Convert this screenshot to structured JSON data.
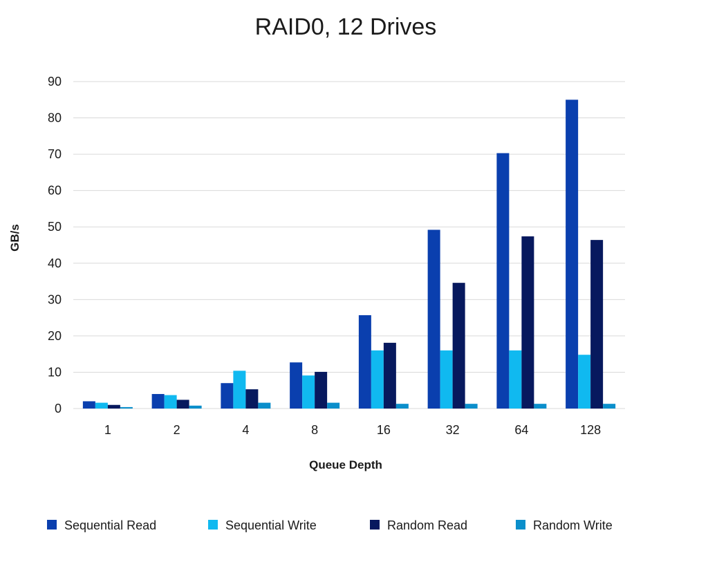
{
  "chart_data": {
    "type": "bar",
    "title": "RAID0, 12 Drives",
    "xlabel": "Queue Depth",
    "ylabel": "GB/s",
    "ylim": [
      0,
      90
    ],
    "yticks": [
      0,
      10,
      20,
      30,
      40,
      50,
      60,
      70,
      80,
      90
    ],
    "grid": true,
    "legend_position": "bottom",
    "categories": [
      "1",
      "2",
      "4",
      "8",
      "16",
      "32",
      "64",
      "128"
    ],
    "series": [
      {
        "name": "Sequential Read",
        "color": "#0a3fae",
        "values": [
          2.0,
          4.0,
          7.0,
          12.7,
          25.7,
          49.2,
          70.3,
          85.0
        ]
      },
      {
        "name": "Sequential Write",
        "color": "#10b9f0",
        "values": [
          1.6,
          3.7,
          10.4,
          9.1,
          16.0,
          16.0,
          16.0,
          14.8
        ]
      },
      {
        "name": "Random Read",
        "color": "#07195e",
        "values": [
          1.0,
          2.4,
          5.3,
          10.1,
          18.1,
          34.6,
          47.4,
          46.4
        ]
      },
      {
        "name": "Random Write",
        "color": "#0b8fcb",
        "values": [
          0.4,
          0.8,
          1.6,
          1.6,
          1.3,
          1.3,
          1.3,
          1.3
        ]
      }
    ]
  }
}
